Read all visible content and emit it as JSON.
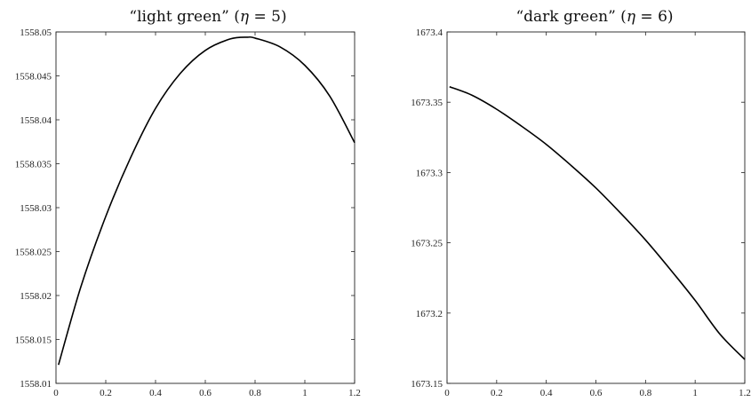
{
  "chart_data": [
    {
      "type": "line",
      "title_quoted": "“light green”",
      "title_math_lhs": "η",
      "title_math_rhs": "= 5",
      "xlim": [
        0,
        1.2
      ],
      "ylim": [
        1558.01,
        1558.05
      ],
      "xticks": [
        "0",
        "0.2",
        "0.4",
        "0.6",
        "0.8",
        "1",
        "1.2"
      ],
      "yticks": [
        "1558.01",
        "1558.015",
        "1558.02",
        "1558.025",
        "1558.03",
        "1558.035",
        "1558.04",
        "1558.045",
        "1558.05"
      ],
      "x": [
        0.01,
        0.1,
        0.2,
        0.3,
        0.4,
        0.5,
        0.6,
        0.7,
        0.77,
        0.8,
        0.9,
        1.0,
        1.1,
        1.2
      ],
      "y": [
        1558.0121,
        1558.021,
        1558.029,
        1558.0357,
        1558.0413,
        1558.0453,
        1558.0479,
        1558.0492,
        1558.0494,
        1558.0493,
        1558.0483,
        1558.0462,
        1558.0427,
        1558.0374
      ],
      "grid": false,
      "line_color": "#000000"
    },
    {
      "type": "line",
      "title_quoted": "“dark green”",
      "title_math_lhs": "η",
      "title_math_rhs": "= 6",
      "xlim": [
        0,
        1.2
      ],
      "ylim": [
        1673.15,
        1673.4
      ],
      "xticks": [
        "0",
        "0.2",
        "0.4",
        "0.6",
        "0.8",
        "1",
        "1.2"
      ],
      "yticks": [
        "1673.15",
        "1673.2",
        "1673.25",
        "1673.3",
        "1673.35",
        "1673.4"
      ],
      "x": [
        0.01,
        0.1,
        0.2,
        0.3,
        0.4,
        0.5,
        0.6,
        0.7,
        0.8,
        0.9,
        1.0,
        1.1,
        1.2
      ],
      "y": [
        1673.361,
        1673.355,
        1673.345,
        1673.333,
        1673.32,
        1673.305,
        1673.289,
        1673.271,
        1673.252,
        1673.231,
        1673.209,
        1673.185,
        1673.167
      ],
      "grid": false,
      "line_color": "#000000"
    }
  ]
}
